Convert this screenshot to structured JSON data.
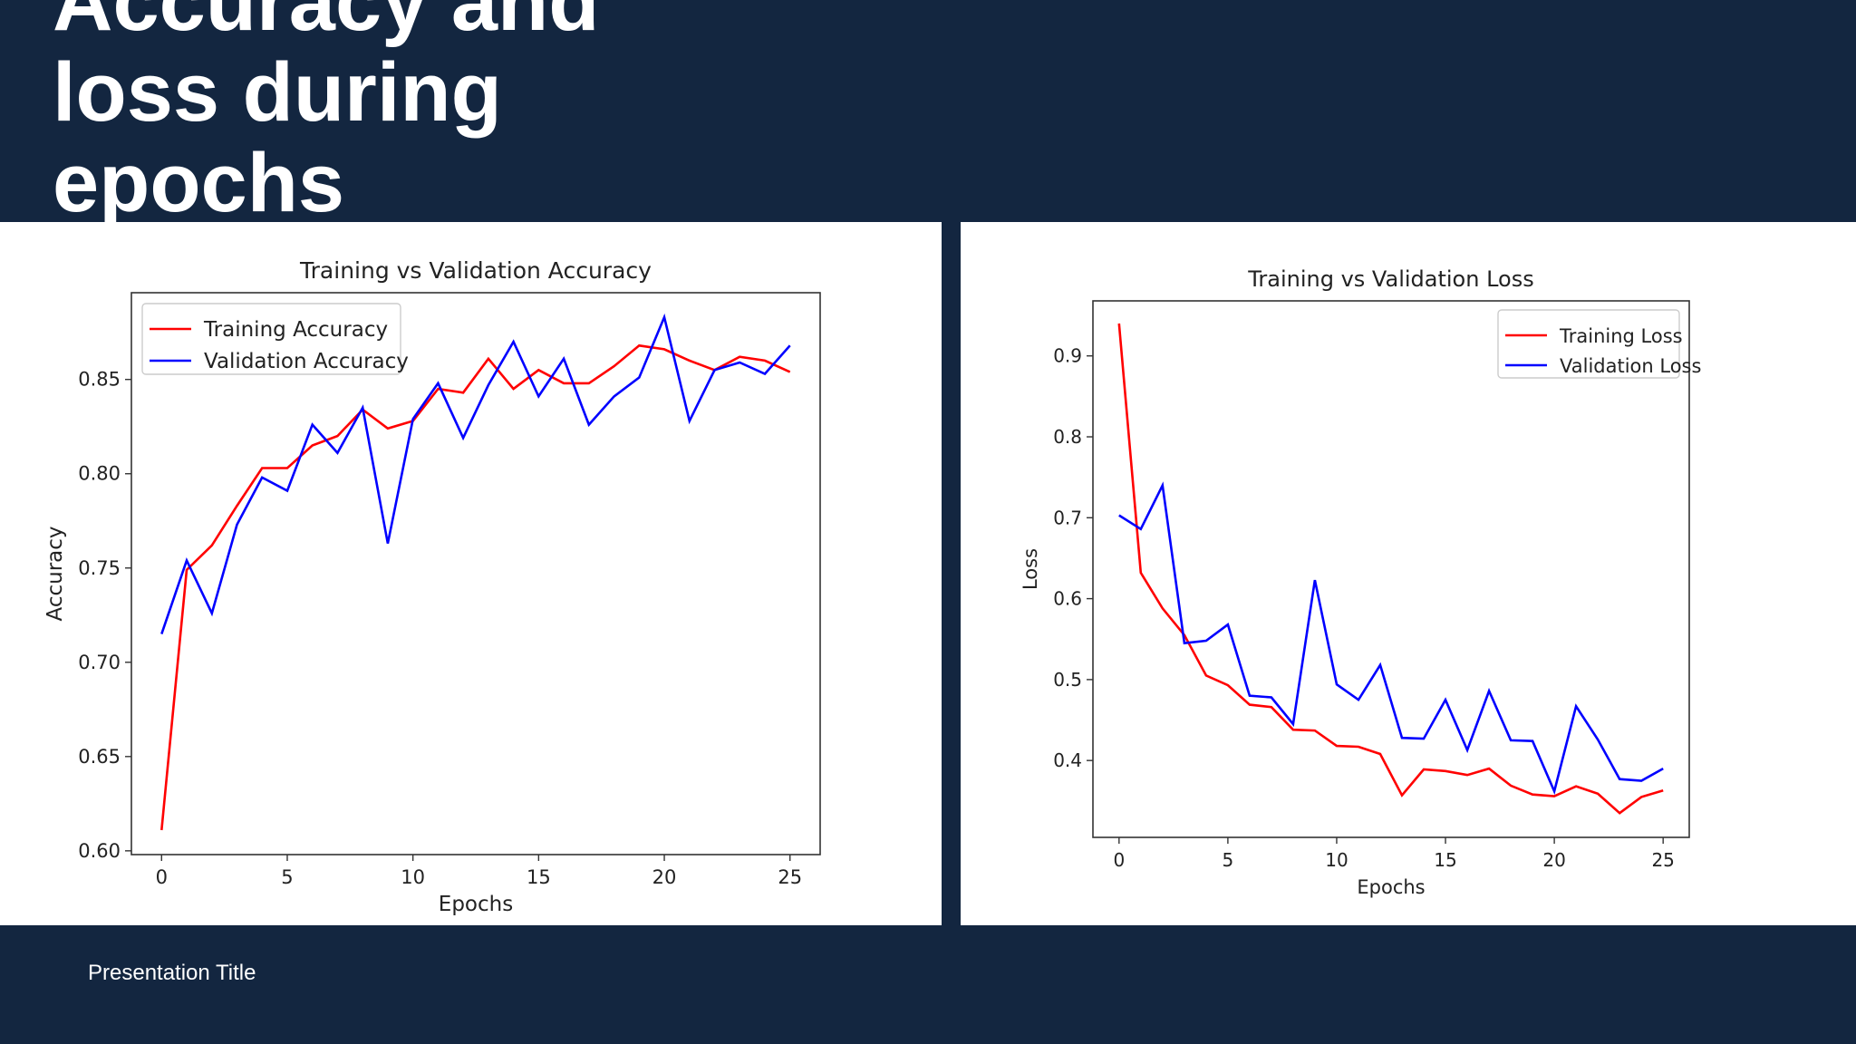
{
  "slide": {
    "title": "Accuracy and\nloss during\nepochs",
    "footer": "Presentation Title"
  },
  "colors": {
    "background": "#132640",
    "training": "#ff0000",
    "validation": "#0000ff"
  },
  "chart_data": [
    {
      "type": "line",
      "title": "Training vs Validation Accuracy",
      "xlabel": "Epochs",
      "ylabel": "Accuracy",
      "xlim": [
        -1.2,
        26.2
      ],
      "ylim": [
        0.598,
        0.896
      ],
      "xticks": [
        0,
        5,
        10,
        15,
        20,
        25
      ],
      "yticks": [
        0.6,
        0.65,
        0.7,
        0.75,
        0.8,
        0.85
      ],
      "ytick_labels": [
        "0.60",
        "0.65",
        "0.70",
        "0.75",
        "0.80",
        "0.85"
      ],
      "legend": "top-left",
      "x": [
        0,
        1,
        2,
        3,
        4,
        5,
        6,
        7,
        8,
        9,
        10,
        11,
        12,
        13,
        14,
        15,
        16,
        17,
        18,
        19,
        20,
        21,
        22,
        23,
        24,
        25
      ],
      "series": [
        {
          "name": "Training Accuracy",
          "color": "#ff0000",
          "values": [
            0.611,
            0.749,
            0.762,
            0.783,
            0.803,
            0.803,
            0.815,
            0.82,
            0.834,
            0.824,
            0.828,
            0.845,
            0.843,
            0.861,
            0.845,
            0.855,
            0.848,
            0.848,
            0.857,
            0.868,
            0.866,
            0.86,
            0.855,
            0.862,
            0.86,
            0.854
          ]
        },
        {
          "name": "Validation Accuracy",
          "color": "#0000ff",
          "values": [
            0.715,
            0.754,
            0.726,
            0.773,
            0.798,
            0.791,
            0.826,
            0.811,
            0.835,
            0.763,
            0.829,
            0.848,
            0.819,
            0.847,
            0.87,
            0.841,
            0.861,
            0.826,
            0.841,
            0.851,
            0.883,
            0.828,
            0.855,
            0.859,
            0.853,
            0.868
          ]
        }
      ]
    },
    {
      "type": "line",
      "title": "Training vs Validation Loss",
      "xlabel": "Epochs",
      "ylabel": "Loss",
      "xlim": [
        -1.2,
        26.2
      ],
      "ylim": [
        0.305,
        0.968
      ],
      "xticks": [
        0,
        5,
        10,
        15,
        20,
        25
      ],
      "yticks": [
        0.4,
        0.5,
        0.6,
        0.7,
        0.8,
        0.9
      ],
      "ytick_labels": [
        "0.4",
        "0.5",
        "0.6",
        "0.7",
        "0.8",
        "0.9"
      ],
      "legend": "top-right",
      "x": [
        0,
        1,
        2,
        3,
        4,
        5,
        6,
        7,
        8,
        9,
        10,
        11,
        12,
        13,
        14,
        15,
        16,
        17,
        18,
        19,
        20,
        21,
        22,
        23,
        24,
        25
      ],
      "series": [
        {
          "name": "Training Loss",
          "color": "#ff0000",
          "values": [
            0.94,
            0.632,
            0.588,
            0.555,
            0.505,
            0.493,
            0.469,
            0.466,
            0.438,
            0.437,
            0.418,
            0.417,
            0.408,
            0.357,
            0.389,
            0.387,
            0.382,
            0.39,
            0.369,
            0.358,
            0.356,
            0.368,
            0.359,
            0.335,
            0.355,
            0.363
          ]
        },
        {
          "name": "Validation Loss",
          "color": "#0000ff",
          "values": [
            0.703,
            0.686,
            0.74,
            0.545,
            0.548,
            0.568,
            0.48,
            0.478,
            0.445,
            0.623,
            0.494,
            0.475,
            0.518,
            0.428,
            0.427,
            0.475,
            0.413,
            0.486,
            0.425,
            0.424,
            0.362,
            0.467,
            0.426,
            0.377,
            0.375,
            0.39
          ]
        }
      ]
    }
  ]
}
